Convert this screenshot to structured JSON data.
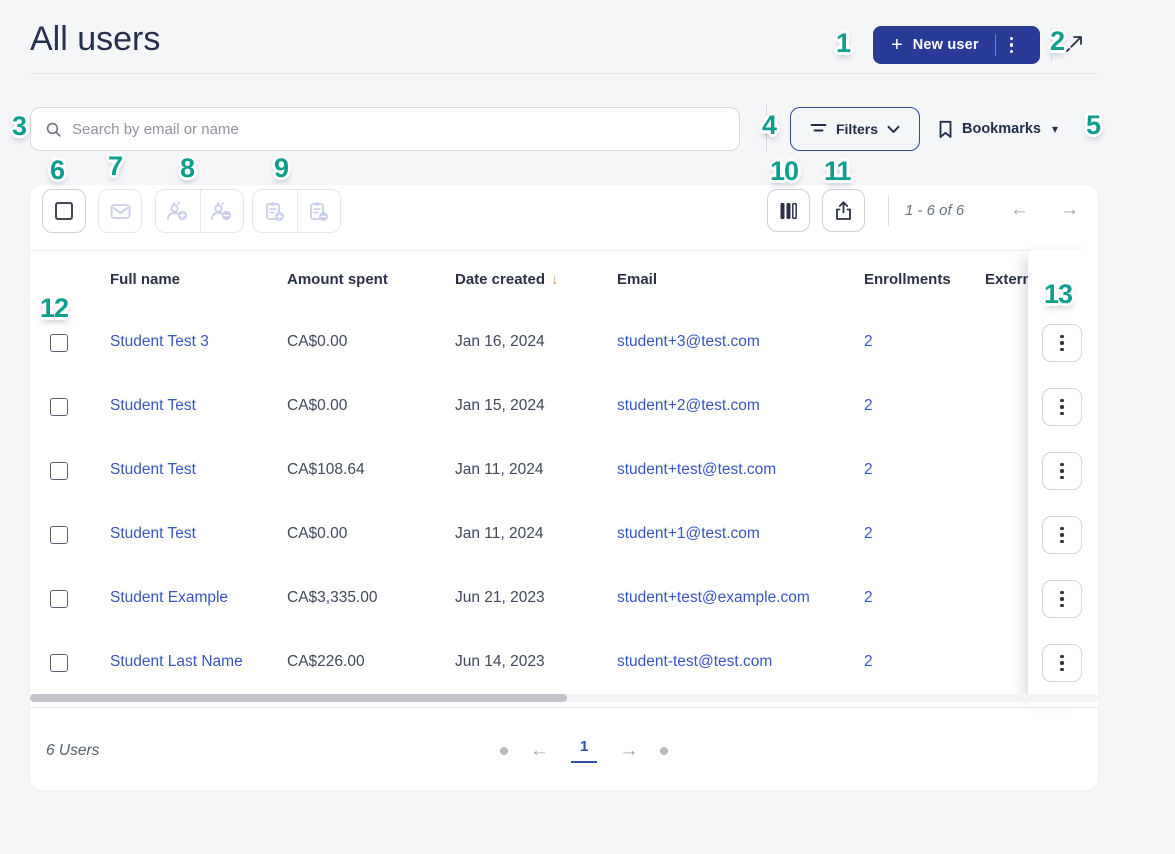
{
  "header": {
    "title": "All users",
    "new_user_plus": "+",
    "new_user_label": "New user"
  },
  "search": {
    "placeholder": "Search by email or name"
  },
  "filters": {
    "label": "Filters"
  },
  "bookmarks": {
    "label": "Bookmarks",
    "caret": "▾"
  },
  "toolbar": {
    "range_text": "1 - 6 of 6",
    "prev_arrow": "←",
    "next_arrow": "→"
  },
  "table": {
    "columns": [
      "Full name",
      "Amount spent",
      "Date created",
      "Email",
      "Enrollments",
      "Extern"
    ],
    "sort_arrow": "↓",
    "rows": [
      {
        "name": "Student Test 3",
        "amount": "CA$0.00",
        "date": "Jan 16, 2024",
        "email": "student+3@test.com",
        "enrollments": "2"
      },
      {
        "name": "Student Test",
        "amount": "CA$0.00",
        "date": "Jan 15, 2024",
        "email": "student+2@test.com",
        "enrollments": "2"
      },
      {
        "name": "Student Test",
        "amount": "CA$108.64",
        "date": "Jan 11, 2024",
        "email": "student+test@test.com",
        "enrollments": "2"
      },
      {
        "name": "Student Test",
        "amount": "CA$0.00",
        "date": "Jan 11, 2024",
        "email": "student+1@test.com",
        "enrollments": "2"
      },
      {
        "name": "Student Example",
        "amount": "CA$3,335.00",
        "date": "Jun 21, 2023",
        "email": "student+test@example.com",
        "enrollments": "2"
      },
      {
        "name": "Student Last Name",
        "amount": "CA$226.00",
        "date": "Jun 14, 2023",
        "email": "student-test@test.com",
        "enrollments": "2"
      }
    ]
  },
  "footer": {
    "count_text": "6 Users",
    "page_number": "1",
    "prev_arrow": "←",
    "next_arrow": "→"
  },
  "annotations": [
    "1",
    "2",
    "3",
    "4",
    "5",
    "6",
    "7",
    "8",
    "9",
    "10",
    "11",
    "12",
    "13"
  ],
  "colors": {
    "primary_button": "#293a97",
    "link": "#3b54c0",
    "annotation_teal": "#0d9f8d",
    "sort_arrow_orange": "#e89b45",
    "page_background": "#f5f6f8"
  }
}
